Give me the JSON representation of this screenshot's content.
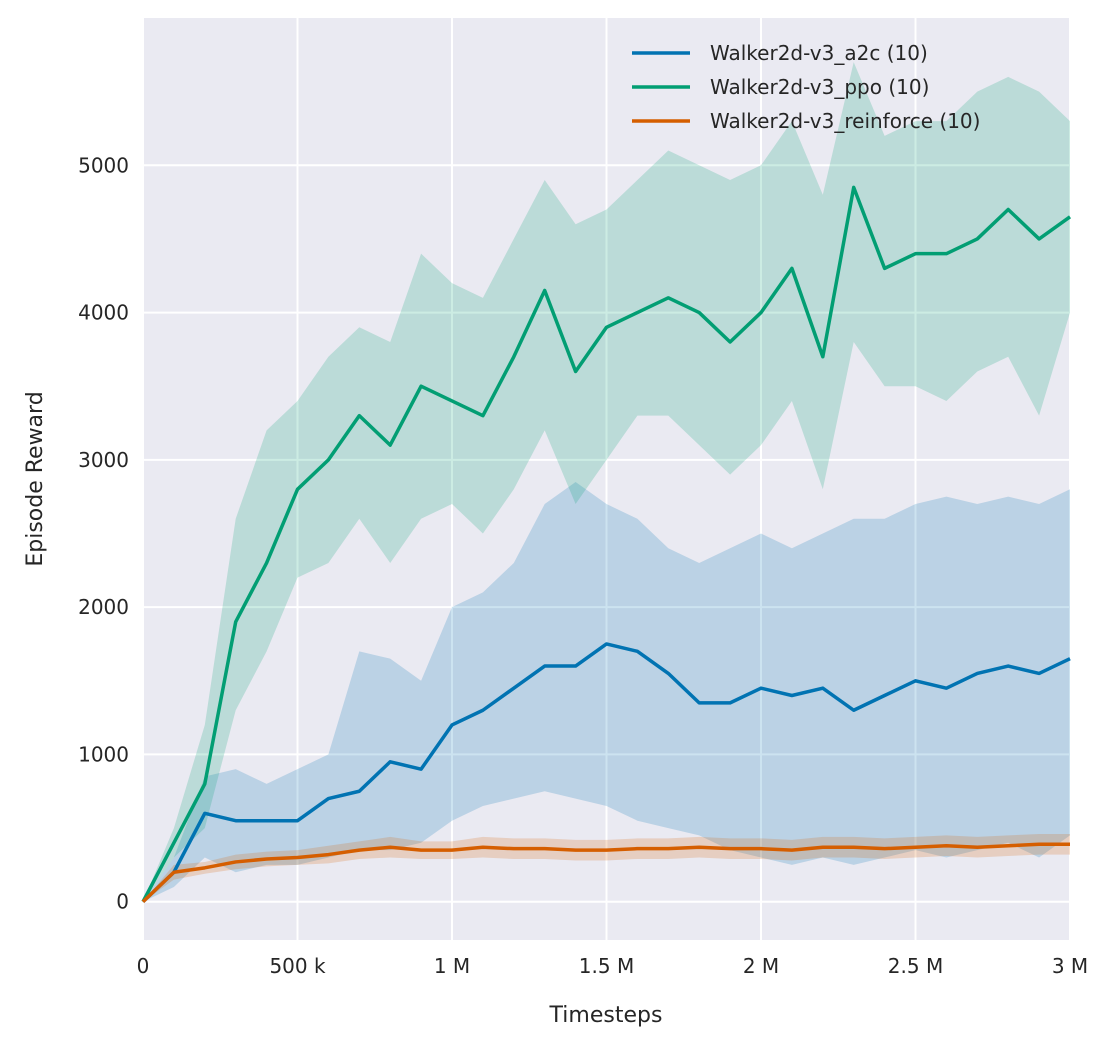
{
  "chart_data": {
    "type": "line",
    "title": "",
    "xlabel": "Timesteps",
    "ylabel": "Episode Reward",
    "xlim": [
      0,
      3000000
    ],
    "ylim": [
      -260,
      6000
    ],
    "grid": true,
    "legend_placement": "top-right",
    "x_ticks": [
      0,
      500000,
      1000000,
      1500000,
      2000000,
      2500000,
      3000000
    ],
    "x_tick_labels": [
      "0",
      "500 k",
      "1 M",
      "1.5 M",
      "2 M",
      "2.5 M",
      "3 M"
    ],
    "y_ticks": [
      0,
      1000,
      2000,
      3000,
      4000,
      5000
    ],
    "y_tick_labels": [
      "0",
      "1000",
      "2000",
      "3000",
      "4000",
      "5000"
    ],
    "x": [
      0,
      100000,
      200000,
      300000,
      400000,
      500000,
      600000,
      700000,
      800000,
      900000,
      1000000,
      1100000,
      1200000,
      1300000,
      1400000,
      1500000,
      1600000,
      1700000,
      1800000,
      1900000,
      2000000,
      2100000,
      2200000,
      2300000,
      2400000,
      2500000,
      2600000,
      2700000,
      2800000,
      2900000,
      3000000
    ],
    "series": [
      {
        "name": "Walker2d-v3_a2c (10)",
        "color": "#0173b2",
        "values": [
          0,
          200,
          600,
          550,
          550,
          550,
          700,
          750,
          950,
          900,
          1200,
          1300,
          1450,
          1600,
          1600,
          1750,
          1700,
          1550,
          1350,
          1350,
          1450,
          1400,
          1450,
          1300,
          1400,
          1500,
          1450,
          1550,
          1600,
          1550,
          1650
        ],
        "lower": [
          0,
          100,
          300,
          200,
          250,
          250,
          300,
          350,
          350,
          400,
          550,
          650,
          700,
          750,
          700,
          650,
          550,
          500,
          450,
          350,
          300,
          250,
          300,
          250,
          300,
          350,
          300,
          350,
          400,
          300,
          450
        ],
        "upper": [
          0,
          300,
          850,
          900,
          800,
          900,
          1000,
          1700,
          1650,
          1500,
          2000,
          2100,
          2300,
          2700,
          2850,
          2700,
          2600,
          2400,
          2300,
          2400,
          2500,
          2400,
          2500,
          2600,
          2600,
          2700,
          2750,
          2700,
          2750,
          2700,
          2800
        ]
      },
      {
        "name": "Walker2d-v3_ppo (10)",
        "color": "#029e73",
        "values": [
          0,
          400,
          800,
          1900,
          2300,
          2800,
          3000,
          3300,
          3100,
          3500,
          3400,
          3300,
          3700,
          4150,
          3600,
          3900,
          4000,
          4100,
          4000,
          3800,
          4000,
          4300,
          3700,
          4850,
          4300,
          4400,
          4400,
          4500,
          4700,
          4500,
          4650
        ],
        "lower": [
          0,
          300,
          500,
          1300,
          1700,
          2200,
          2300,
          2600,
          2300,
          2600,
          2700,
          2500,
          2800,
          3200,
          2700,
          3000,
          3300,
          3300,
          3100,
          2900,
          3100,
          3400,
          2800,
          3800,
          3500,
          3500,
          3400,
          3600,
          3700,
          3300,
          4000
        ],
        "upper": [
          0,
          500,
          1200,
          2600,
          3200,
          3400,
          3700,
          3900,
          3800,
          4400,
          4200,
          4100,
          4500,
          4900,
          4600,
          4700,
          4900,
          5100,
          5000,
          4900,
          5000,
          5300,
          4800,
          5700,
          5200,
          5300,
          5300,
          5500,
          5600,
          5500,
          5300
        ]
      },
      {
        "name": "Walker2d-v3_reinforce (10)",
        "color": "#d55e00",
        "values": [
          0,
          200,
          230,
          270,
          290,
          300,
          320,
          350,
          370,
          350,
          350,
          370,
          360,
          360,
          350,
          350,
          360,
          360,
          370,
          360,
          360,
          350,
          370,
          370,
          360,
          370,
          380,
          370,
          380,
          390,
          390
        ],
        "lower": [
          0,
          150,
          190,
          220,
          240,
          250,
          260,
          290,
          300,
          290,
          290,
          300,
          290,
          290,
          280,
          280,
          290,
          290,
          300,
          290,
          290,
          280,
          300,
          300,
          290,
          300,
          310,
          300,
          310,
          320,
          320
        ],
        "upper": [
          0,
          250,
          270,
          320,
          340,
          350,
          380,
          410,
          440,
          410,
          410,
          440,
          430,
          430,
          420,
          420,
          430,
          430,
          440,
          430,
          430,
          420,
          440,
          440,
          430,
          440,
          450,
          440,
          450,
          460,
          460
        ]
      }
    ]
  }
}
